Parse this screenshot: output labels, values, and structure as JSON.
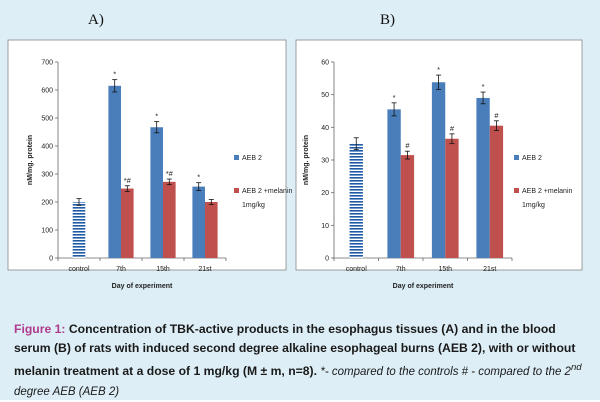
{
  "panels": [
    {
      "label": "A)"
    },
    {
      "label": "B)"
    }
  ],
  "chart_data": [
    {
      "type": "bar",
      "categories": [
        "control",
        "7th",
        "15th",
        "21st"
      ],
      "series": [
        {
          "name": "",
          "values": [
            200,
            null,
            null,
            null
          ],
          "errors": [
            12,
            null,
            null,
            null
          ],
          "color": "#1f5aa6",
          "pattern": "stripes"
        },
        {
          "name": "AEB 2",
          "values": [
            null,
            615,
            467,
            255
          ],
          "errors": [
            null,
            22,
            20,
            14
          ],
          "color": "#4a7ebb",
          "markers": [
            "",
            "*",
            "*",
            "*"
          ]
        },
        {
          "name": "AEB 2 +melanin 1mg/kg",
          "values": [
            null,
            248,
            272,
            200
          ],
          "errors": [
            null,
            10,
            10,
            9
          ],
          "color": "#c0504d",
          "markers": [
            "",
            "*#",
            "*#",
            ""
          ]
        }
      ],
      "xlabel": "Day of experiment",
      "ylabel": "nM/mg. protein",
      "ylim": [
        0,
        700
      ],
      "yticks": [
        0,
        100,
        200,
        300,
        400,
        500,
        600,
        700
      ],
      "legend": [
        "AEB 2",
        "AEB 2 +melanin",
        "1mg/kg"
      ]
    },
    {
      "type": "bar",
      "categories": [
        "control",
        "7th",
        "15th",
        "21st"
      ],
      "series": [
        {
          "name": "",
          "values": [
            35,
            null,
            null,
            null
          ],
          "errors": [
            1.8,
            null,
            null,
            null
          ],
          "color": "#1f5aa6",
          "pattern": "stripes"
        },
        {
          "name": "AEB 2",
          "values": [
            null,
            45.5,
            53.8,
            49
          ],
          "errors": [
            null,
            2,
            2.2,
            1.8
          ],
          "color": "#4a7ebb",
          "markers": [
            "",
            "*",
            "*",
            "*"
          ]
        },
        {
          "name": "AEB 2 +melanin 1mg/kg",
          "values": [
            null,
            31.5,
            36.5,
            40.5
          ],
          "errors": [
            null,
            1.2,
            1.5,
            1.5
          ],
          "color": "#c0504d",
          "markers": [
            "",
            "#",
            "#",
            "#"
          ]
        }
      ],
      "xlabel": "Day of experiment",
      "ylabel": "nM/mg. protein",
      "ylim": [
        0,
        60
      ],
      "yticks": [
        0,
        10,
        20,
        30,
        40,
        50,
        60
      ],
      "legend": [
        "AEB 2",
        "AEB 2 +melanin",
        "1mg/kg"
      ]
    }
  ],
  "caption": {
    "fig": "Figure 1",
    "colon": ":",
    "main": " Concentration of TBK-active products in the esophagus tissues (A) and in the blood serum (B) of rats with induced second degree alkaline esophageal burns (AEB 2), with or without melanin treatment at a dose of 1 mg/kg (M ± m, n=8). ",
    "note_pre": "*- compared to the controls # - compared to the 2",
    "note_sup": "nd",
    "note_post": " degree AEB (AEB 2)"
  }
}
